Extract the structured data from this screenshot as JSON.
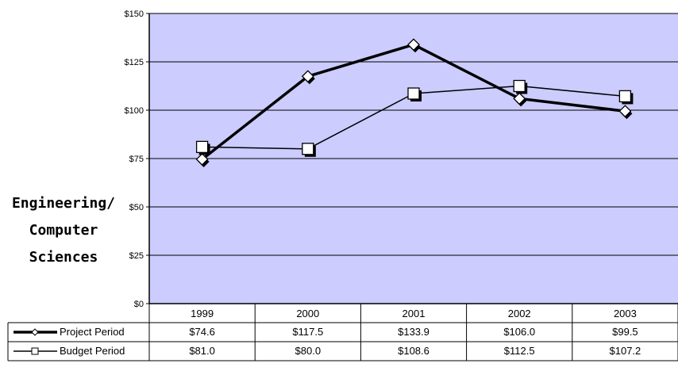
{
  "side_label_lines": [
    "Engineering/",
    "Computer",
    "Sciences"
  ],
  "chart_data": {
    "type": "line",
    "categories": [
      "1999",
      "2000",
      "2001",
      "2002",
      "2003"
    ],
    "series": [
      {
        "name": "Project Period",
        "values": [
          74.6,
          117.5,
          133.9,
          106.0,
          99.5
        ],
        "labels": [
          "$74.6",
          "$117.5",
          "$133.9",
          "$106.0",
          "$99.5"
        ],
        "marker": "diamond",
        "line": "thick"
      },
      {
        "name": "Budget Period",
        "values": [
          81.0,
          80.0,
          108.6,
          112.5,
          107.2
        ],
        "labels": [
          "$81.0",
          "$80.0",
          "$108.6",
          "$112.5",
          "$107.2"
        ],
        "marker": "square",
        "line": "thin"
      }
    ],
    "yticks": [
      "$0",
      "$25",
      "$50",
      "$75",
      "$100",
      "$125",
      "$150"
    ],
    "ylim": [
      0,
      150
    ],
    "grid": true,
    "plot_background": "#ccccff",
    "legend": "data-table-below"
  }
}
